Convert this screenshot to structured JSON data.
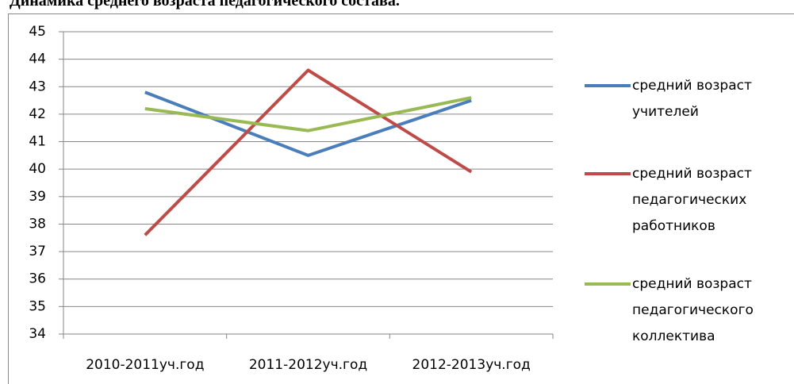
{
  "chart_data": {
    "type": "line",
    "title": "Динамика среднего возраста педагогического состава.",
    "categories": [
      "2010-2011уч.год",
      "2011-2012уч.год",
      "2012-2013уч.год"
    ],
    "series": [
      {
        "name": "средний возраст учителей",
        "color": "#4a7ebb",
        "values": [
          42.8,
          40.5,
          42.5
        ]
      },
      {
        "name": "средний возраст педагогических работников",
        "color": "#be4b48",
        "values": [
          37.6,
          43.6,
          39.9
        ]
      },
      {
        "name": "средний возраст педагогического коллектива",
        "color": "#98b954",
        "values": [
          42.2,
          41.4,
          42.6
        ]
      }
    ],
    "ylim": [
      34,
      45
    ],
    "yticks": [
      34,
      35,
      36,
      37,
      38,
      39,
      40,
      41,
      42,
      43,
      44,
      45
    ],
    "grid": true,
    "legend": "right"
  }
}
